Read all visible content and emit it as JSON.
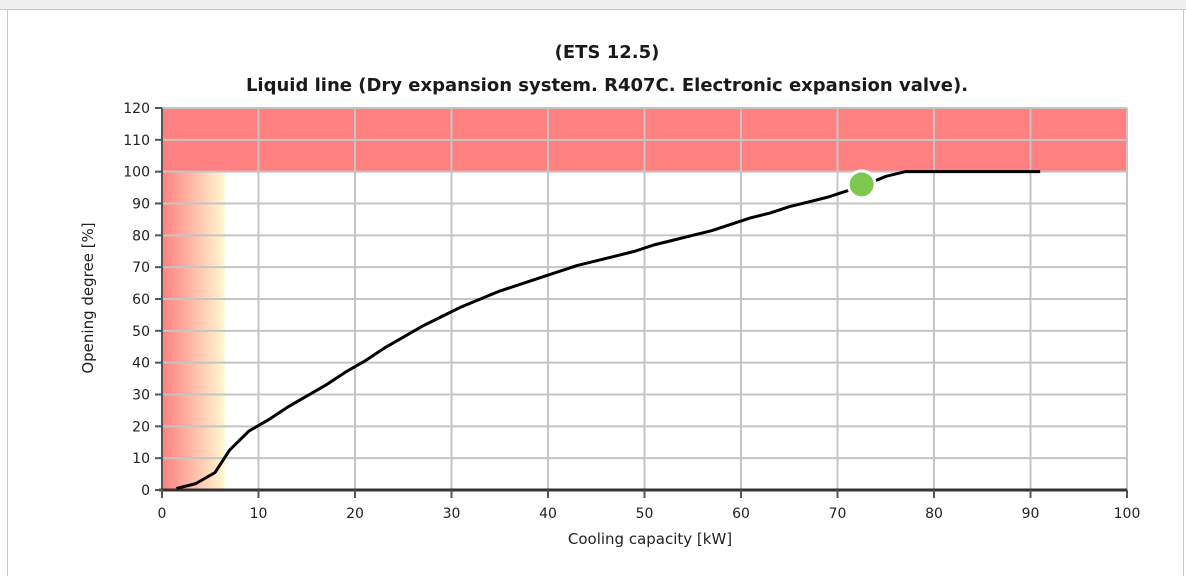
{
  "chart_data": {
    "type": "line",
    "title": "(ETS 12.5)",
    "subtitle": "Liquid line (Dry expansion system. R407C. Electronic expansion valve).",
    "xlabel": "Cooling capacity [kW]",
    "ylabel": "Opening degree [%]",
    "xlim": [
      0,
      100
    ],
    "ylim": [
      0,
      120
    ],
    "xticks": [
      0,
      10,
      20,
      30,
      40,
      50,
      60,
      70,
      80,
      90,
      100
    ],
    "yticks": [
      0,
      10,
      20,
      30,
      40,
      50,
      60,
      70,
      80,
      90,
      100,
      110,
      120
    ],
    "grid": true,
    "zones": {
      "overcapacity_band": {
        "ymin": 100,
        "ymax": 120,
        "color": "#ff8080"
      },
      "low_capacity_gradient": {
        "xmin": 0,
        "xmax": 6.5,
        "ymin": 0,
        "ymax": 100,
        "color_from": "#ff8080",
        "color_to": "#fff8d0"
      }
    },
    "series": [
      {
        "color": "#000000",
        "x": [
          1.5,
          3.5,
          5.5,
          7,
          9,
          11,
          13,
          15,
          17,
          19,
          21,
          23,
          25,
          27,
          29,
          31,
          33,
          35,
          37,
          39,
          41,
          43,
          45,
          47,
          49,
          51,
          53,
          55,
          57,
          59,
          61,
          63,
          65,
          67,
          69,
          71,
          73,
          75,
          77,
          80,
          85,
          91
        ],
        "y": [
          0.5,
          2,
          5.5,
          12.5,
          18.5,
          22,
          26,
          29.5,
          33,
          37,
          40.5,
          44.5,
          48,
          51.5,
          54.5,
          57.5,
          60,
          62.5,
          64.5,
          66.5,
          68.5,
          70.5,
          72,
          73.5,
          75,
          77,
          78.5,
          80,
          81.5,
          83.5,
          85.5,
          87,
          89,
          90.5,
          92,
          94,
          96,
          98.5,
          100,
          100,
          100,
          100
        ]
      }
    ],
    "marker": {
      "x": 72.5,
      "y": 96,
      "color": "#7ec850"
    }
  }
}
